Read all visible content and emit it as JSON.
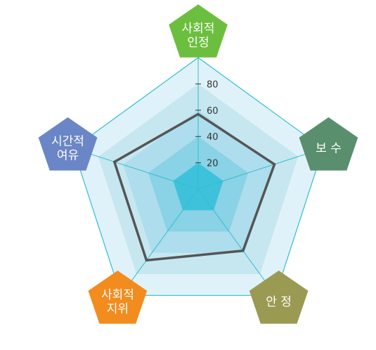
{
  "chart_data": {
    "type": "radar",
    "axes": [
      {
        "label_lines": [
          "사회적",
          "인정"
        ],
        "color": "#6cbf3e"
      },
      {
        "label_lines": [
          "보 수"
        ],
        "color": "#5a8f6d"
      },
      {
        "label_lines": [
          "안 정"
        ],
        "color": "#9b9a52"
      },
      {
        "label_lines": [
          "사회적",
          "지위"
        ],
        "color": "#f28c1e"
      },
      {
        "label_lines": [
          "시간적",
          "여유"
        ],
        "color": "#6a86c6"
      }
    ],
    "ticks": [
      20,
      40,
      60,
      80
    ],
    "tick_labels": [
      "20",
      "40",
      "60",
      "80"
    ],
    "range": [
      0,
      100
    ],
    "series": [
      {
        "values": [
          57,
          61,
          58,
          67,
          67
        ],
        "color": "#555555"
      }
    ],
    "ring_fills": [
      "#e0f2f9",
      "#c6e7f0",
      "#aedded",
      "#8ad2e5",
      "#3ec2dc"
    ],
    "grid_color": "#30bed0"
  }
}
